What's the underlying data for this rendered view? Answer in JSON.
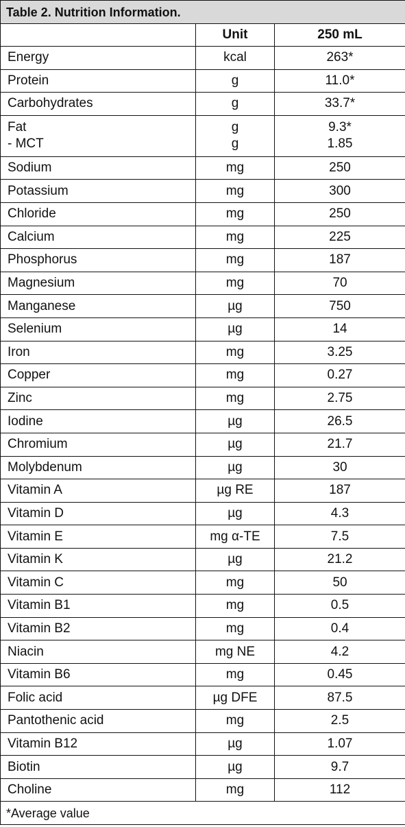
{
  "title": "Table 2. Nutrition Information.",
  "header": [
    "Unit",
    "250 mL"
  ],
  "rows": [
    [
      "Energy",
      "kcal",
      "263*"
    ],
    [
      "Protein",
      "g",
      "11.0*"
    ],
    [
      "Carbohydrates",
      "g",
      "33.7*"
    ],
    [
      [
        "Fat",
        "- MCT"
      ],
      [
        "g",
        "g"
      ],
      [
        "9.3*",
        "1.85"
      ]
    ],
    [
      "Sodium",
      "mg",
      "250"
    ],
    [
      "Potassium",
      "mg",
      "300"
    ],
    [
      "Chloride",
      "mg",
      "250"
    ],
    [
      "Calcium",
      "mg",
      "225"
    ],
    [
      "Phosphorus",
      "mg",
      "187"
    ],
    [
      "Magnesium",
      "mg",
      "70"
    ],
    [
      "Manganese",
      "µg",
      "750"
    ],
    [
      "Selenium",
      "µg",
      "14"
    ],
    [
      "Iron",
      "mg",
      "3.25"
    ],
    [
      "Copper",
      "mg",
      "0.27"
    ],
    [
      "Zinc",
      "mg",
      "2.75"
    ],
    [
      "Iodine",
      "µg",
      "26.5"
    ],
    [
      "Chromium",
      "µg",
      "21.7"
    ],
    [
      "Molybdenum",
      "µg",
      "30"
    ],
    [
      "Vitamin A",
      "µg RE",
      "187"
    ],
    [
      "Vitamin D",
      "µg",
      "4.3"
    ],
    [
      "Vitamin E",
      "mg α-TE",
      "7.5"
    ],
    [
      "Vitamin K",
      "µg",
      "21.2"
    ],
    [
      "Vitamin C",
      "mg",
      "50"
    ],
    [
      "Vitamin B1",
      "mg",
      "0.5"
    ],
    [
      "Vitamin B2",
      "mg",
      "0.4"
    ],
    [
      "Niacin",
      "mg NE",
      "4.2"
    ],
    [
      "Vitamin B6",
      "mg",
      "0.45"
    ],
    [
      "Folic acid",
      "µg DFE",
      "87.5"
    ],
    [
      "Pantothenic acid",
      "mg",
      "2.5"
    ],
    [
      "Vitamin B12",
      "µg",
      "1.07"
    ],
    [
      "Biotin",
      "µg",
      "9.7"
    ],
    [
      "Choline",
      "mg",
      "112"
    ]
  ],
  "footnote": "*Average value"
}
